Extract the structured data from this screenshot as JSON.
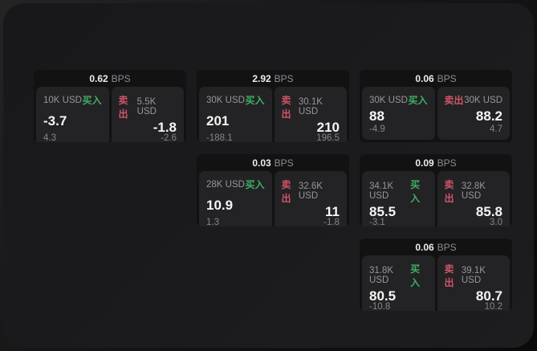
{
  "labels": {
    "bps_unit": "BPS",
    "buy": "买入",
    "sell": "卖出"
  },
  "colors": {
    "buy_green": "#3fae66",
    "sell_red": "#cf5468",
    "window_bg": "#1b1b1d",
    "card_bg": "#121213",
    "panel_bg": "#232325"
  },
  "cards": [
    {
      "bps": "0.62",
      "buy": {
        "amount": "10K USD",
        "value": "-3.7",
        "sub": "4.3"
      },
      "sell": {
        "amount": "5.5K USD",
        "value": "-1.8",
        "sub": "-2.6"
      }
    },
    {
      "bps": "2.92",
      "buy": {
        "amount": "30K USD",
        "value": "201",
        "sub": "-188.1"
      },
      "sell": {
        "amount": "30.1K USD",
        "value": "210",
        "sub": "196.5"
      }
    },
    {
      "bps": "0.06",
      "buy": {
        "amount": "30K USD",
        "value": "88",
        "sub": "-4.9"
      },
      "sell": {
        "amount": "30K USD",
        "value": "88.2",
        "sub": "4.7"
      }
    },
    {
      "bps": "0.03",
      "buy": {
        "amount": "28K USD",
        "value": "10.9",
        "sub": "1.3"
      },
      "sell": {
        "amount": "32.6K USD",
        "value": "11",
        "sub": "-1.8"
      }
    },
    {
      "bps": "0.09",
      "buy": {
        "amount": "34.1K USD",
        "value": "85.5",
        "sub": "-3.1"
      },
      "sell": {
        "amount": "32.8K USD",
        "value": "85.8",
        "sub": "3.0"
      }
    },
    {
      "bps": "0.06",
      "buy": {
        "amount": "31.8K USD",
        "value": "80.5",
        "sub": "-10.8"
      },
      "sell": {
        "amount": "39.1K USD",
        "value": "80.7",
        "sub": "10.2"
      }
    }
  ]
}
